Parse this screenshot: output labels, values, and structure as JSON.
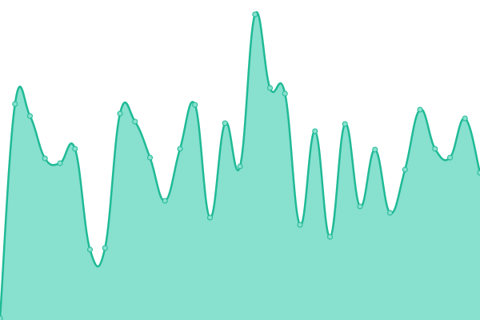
{
  "chart_data": {
    "type": "area",
    "values": [
      2,
      270,
      255,
      202,
      196,
      214,
      88,
      90,
      258,
      248,
      203,
      149,
      214,
      269,
      128,
      246,
      192,
      382,
      290,
      283,
      119,
      236,
      104,
      245,
      142,
      213,
      134,
      188,
      263,
      214,
      203,
      252,
      184
    ],
    "ylim": [
      0,
      400
    ],
    "color": "#1fba96",
    "fill": "#88e0cf"
  }
}
